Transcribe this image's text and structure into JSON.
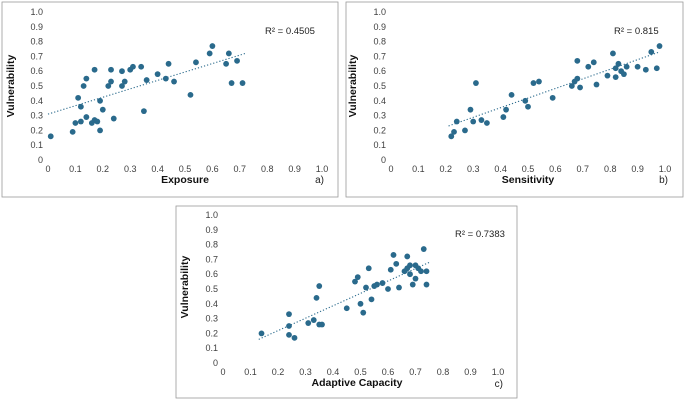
{
  "chart_data": [
    {
      "type": "scatter",
      "panel_label": "a)",
      "xlabel": "Exposure",
      "ylabel": "Vulnerability",
      "xlim": [
        0,
        1
      ],
      "ylim": [
        0,
        1
      ],
      "r2_label": "R² = 0.4505",
      "trendline": {
        "x0": 0,
        "y0": 0.31,
        "x1": 0.72,
        "y1": 0.72
      },
      "points": [
        [
          0.01,
          0.16
        ],
        [
          0.09,
          0.19
        ],
        [
          0.1,
          0.25
        ],
        [
          0.11,
          0.42
        ],
        [
          0.12,
          0.36
        ],
        [
          0.12,
          0.26
        ],
        [
          0.13,
          0.5
        ],
        [
          0.14,
          0.55
        ],
        [
          0.14,
          0.29
        ],
        [
          0.16,
          0.25
        ],
        [
          0.17,
          0.61
        ],
        [
          0.17,
          0.27
        ],
        [
          0.18,
          0.26
        ],
        [
          0.19,
          0.4
        ],
        [
          0.19,
          0.2
        ],
        [
          0.2,
          0.34
        ],
        [
          0.22,
          0.5
        ],
        [
          0.23,
          0.53
        ],
        [
          0.23,
          0.61
        ],
        [
          0.24,
          0.28
        ],
        [
          0.27,
          0.6
        ],
        [
          0.27,
          0.5
        ],
        [
          0.28,
          0.53
        ],
        [
          0.3,
          0.61
        ],
        [
          0.31,
          0.63
        ],
        [
          0.34,
          0.63
        ],
        [
          0.35,
          0.33
        ],
        [
          0.36,
          0.54
        ],
        [
          0.4,
          0.58
        ],
        [
          0.43,
          0.55
        ],
        [
          0.44,
          0.65
        ],
        [
          0.46,
          0.53
        ],
        [
          0.52,
          0.44
        ],
        [
          0.54,
          0.66
        ],
        [
          0.59,
          0.72
        ],
        [
          0.6,
          0.77
        ],
        [
          0.65,
          0.65
        ],
        [
          0.66,
          0.72
        ],
        [
          0.67,
          0.52
        ],
        [
          0.69,
          0.67
        ],
        [
          0.71,
          0.52
        ]
      ]
    },
    {
      "type": "scatter",
      "panel_label": "b)",
      "xlabel": "Sensitivity",
      "ylabel": "Vulnerability",
      "xlim": [
        0,
        1
      ],
      "ylim": [
        0,
        1
      ],
      "r2_label": "R² = 0.815",
      "trendline": {
        "x0": 0.21,
        "y0": 0.23,
        "x1": 0.98,
        "y1": 0.73
      },
      "points": [
        [
          0.22,
          0.16
        ],
        [
          0.23,
          0.19
        ],
        [
          0.24,
          0.26
        ],
        [
          0.27,
          0.2
        ],
        [
          0.29,
          0.34
        ],
        [
          0.3,
          0.26
        ],
        [
          0.31,
          0.52
        ],
        [
          0.33,
          0.27
        ],
        [
          0.35,
          0.25
        ],
        [
          0.41,
          0.29
        ],
        [
          0.42,
          0.34
        ],
        [
          0.44,
          0.44
        ],
        [
          0.49,
          0.4
        ],
        [
          0.5,
          0.36
        ],
        [
          0.52,
          0.52
        ],
        [
          0.54,
          0.53
        ],
        [
          0.59,
          0.42
        ],
        [
          0.66,
          0.5
        ],
        [
          0.67,
          0.53
        ],
        [
          0.68,
          0.55
        ],
        [
          0.68,
          0.67
        ],
        [
          0.69,
          0.49
        ],
        [
          0.72,
          0.63
        ],
        [
          0.74,
          0.66
        ],
        [
          0.75,
          0.51
        ],
        [
          0.79,
          0.57
        ],
        [
          0.81,
          0.72
        ],
        [
          0.82,
          0.62
        ],
        [
          0.82,
          0.56
        ],
        [
          0.83,
          0.65
        ],
        [
          0.84,
          0.6
        ],
        [
          0.85,
          0.58
        ],
        [
          0.86,
          0.63
        ],
        [
          0.9,
          0.63
        ],
        [
          0.93,
          0.61
        ],
        [
          0.95,
          0.73
        ],
        [
          0.97,
          0.62
        ],
        [
          0.98,
          0.77
        ]
      ]
    },
    {
      "type": "scatter",
      "panel_label": "c)",
      "xlabel": "Adaptive Capacity",
      "ylabel": "Vulnerability",
      "xlim": [
        0,
        1
      ],
      "ylim": [
        0,
        1
      ],
      "r2_label": "R² = 0.7383",
      "trendline": {
        "x0": 0.13,
        "y0": 0.16,
        "x1": 0.75,
        "y1": 0.68
      },
      "points": [
        [
          0.14,
          0.2
        ],
        [
          0.24,
          0.33
        ],
        [
          0.24,
          0.25
        ],
        [
          0.24,
          0.19
        ],
        [
          0.26,
          0.17
        ],
        [
          0.31,
          0.27
        ],
        [
          0.33,
          0.29
        ],
        [
          0.34,
          0.44
        ],
        [
          0.35,
          0.52
        ],
        [
          0.35,
          0.26
        ],
        [
          0.36,
          0.26
        ],
        [
          0.45,
          0.37
        ],
        [
          0.48,
          0.55
        ],
        [
          0.49,
          0.58
        ],
        [
          0.5,
          0.4
        ],
        [
          0.51,
          0.34
        ],
        [
          0.52,
          0.51
        ],
        [
          0.53,
          0.64
        ],
        [
          0.54,
          0.43
        ],
        [
          0.55,
          0.52
        ],
        [
          0.56,
          0.53
        ],
        [
          0.58,
          0.54
        ],
        [
          0.6,
          0.5
        ],
        [
          0.61,
          0.63
        ],
        [
          0.62,
          0.73
        ],
        [
          0.63,
          0.67
        ],
        [
          0.64,
          0.51
        ],
        [
          0.66,
          0.62
        ],
        [
          0.67,
          0.64
        ],
        [
          0.67,
          0.72
        ],
        [
          0.68,
          0.6
        ],
        [
          0.68,
          0.66
        ],
        [
          0.69,
          0.53
        ],
        [
          0.7,
          0.66
        ],
        [
          0.7,
          0.57
        ],
        [
          0.71,
          0.64
        ],
        [
          0.72,
          0.62
        ],
        [
          0.73,
          0.77
        ],
        [
          0.74,
          0.62
        ],
        [
          0.74,
          0.53
        ]
      ]
    }
  ],
  "colors": {
    "marker": "#2a6a8c",
    "trendline": "#2a6a8c",
    "frame": "#9a9a9a"
  },
  "tick_labels": [
    "0",
    "0.1",
    "0.2",
    "0.3",
    "0.4",
    "0.5",
    "0.6",
    "0.7",
    "0.8",
    "0.9",
    "1.0"
  ]
}
